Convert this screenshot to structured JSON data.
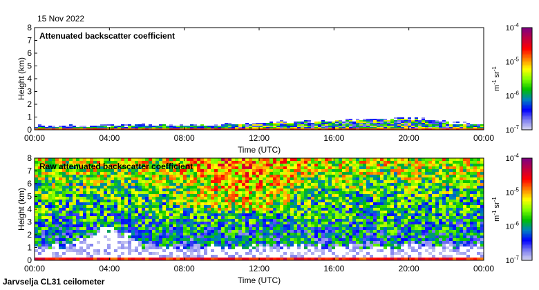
{
  "date": "15 Nov 2022",
  "footer": "Jarvselja CL31 ceilometer",
  "chart_data": [
    {
      "type": "heatmap",
      "title": "Attenuated backscatter coefficient",
      "xlabel": "Time (UTC)",
      "ylabel": "Height (km)",
      "xticks": [
        "00:00",
        "04:00",
        "08:00",
        "12:00",
        "16:00",
        "20:00",
        "00:00"
      ],
      "yticks": [
        "0",
        "1",
        "2",
        "3",
        "4",
        "5",
        "6",
        "7",
        "8"
      ],
      "ylim": [
        0,
        8
      ],
      "xlim_hours": [
        0,
        24
      ],
      "signal_top_km_by_hour": [
        0.3,
        0.3,
        0.3,
        0.35,
        0.35,
        0.4,
        0.4,
        0.4,
        0.4,
        0.4,
        0.45,
        0.5,
        0.6,
        0.65,
        0.65,
        0.7,
        0.75,
        0.8,
        0.85,
        0.9,
        0.85,
        0.7,
        0.5,
        0.45
      ]
    },
    {
      "type": "heatmap",
      "title": "Raw attenuated backscatter coefficient",
      "xlabel": "Time (UTC)",
      "ylabel": "Height (km)",
      "xticks": [
        "00:00",
        "04:00",
        "08:00",
        "12:00",
        "16:00",
        "20:00",
        "00:00"
      ],
      "yticks": [
        "0",
        "1",
        "2",
        "3",
        "4",
        "5",
        "6",
        "7",
        "8"
      ],
      "ylim": [
        0,
        8
      ],
      "xlim_hours": [
        0,
        24
      ]
    }
  ],
  "colorbar": {
    "label_base": "m",
    "label_exp1": "-1",
    "label_mid": " sr",
    "label_exp2": "-1",
    "ticks": [
      {
        "base": "10",
        "exp": "-4"
      },
      {
        "base": "10",
        "exp": "-5"
      },
      {
        "base": "10",
        "exp": "-6"
      },
      {
        "base": "10",
        "exp": "-7"
      }
    ],
    "range": [
      1e-07,
      0.0001
    ],
    "scale": "log",
    "colors": [
      "#dcdcf0",
      "#8080f0",
      "#0000ff",
      "#0080c0",
      "#00c000",
      "#80ff00",
      "#ffff00",
      "#ff8000",
      "#ff0000",
      "#c00040",
      "#800080"
    ]
  }
}
